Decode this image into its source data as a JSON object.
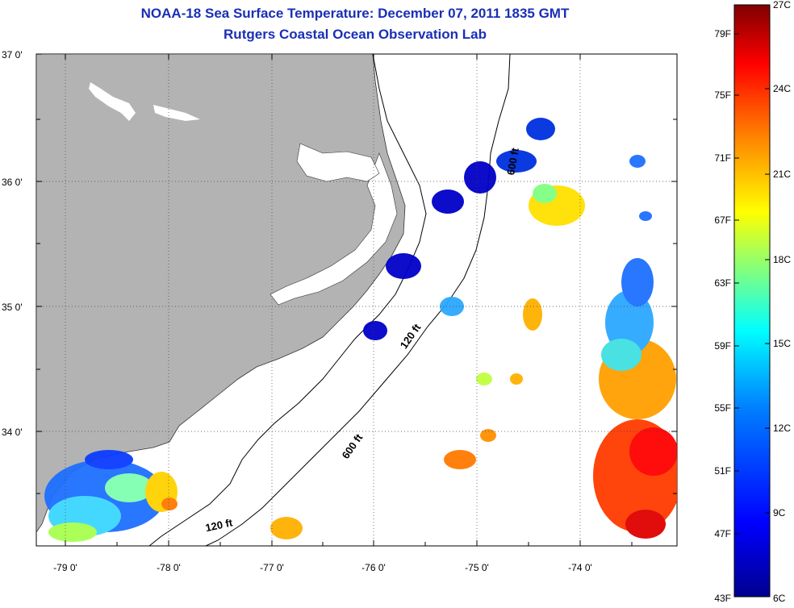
{
  "title": "NOAA-18 Sea Surface Temperature:  December 07, 2011 1835 GMT",
  "subtitle": "Rutgers Coastal Ocean Observation Lab",
  "map": {
    "lat_ticks": [
      "37 0'",
      "36 0'",
      "35 0'",
      "34 0'"
    ],
    "lon_ticks": [
      "-79 0'",
      "-78 0'",
      "-77 0'",
      "-76 0'",
      "-75 0'",
      "-74 0'"
    ],
    "isobaths": [
      "120 ft",
      "600 ft",
      "600 ft",
      "120 ft"
    ],
    "land_color": "#b3b3b3",
    "water_color": "#ffffff"
  },
  "colorbar": {
    "fahrenheit_labels": [
      "79F",
      "75F",
      "71F",
      "67F",
      "63F",
      "59F",
      "55F",
      "51F",
      "47F",
      "43F"
    ],
    "celsius_labels": [
      "27C",
      "24C",
      "21C",
      "18C",
      "15C",
      "12C",
      "9C",
      "6C"
    ],
    "colors": [
      "#800000",
      "#ff0000",
      "#ff8000",
      "#ffff00",
      "#80ff80",
      "#00ffff",
      "#0080ff",
      "#0000ff",
      "#00008f"
    ]
  }
}
